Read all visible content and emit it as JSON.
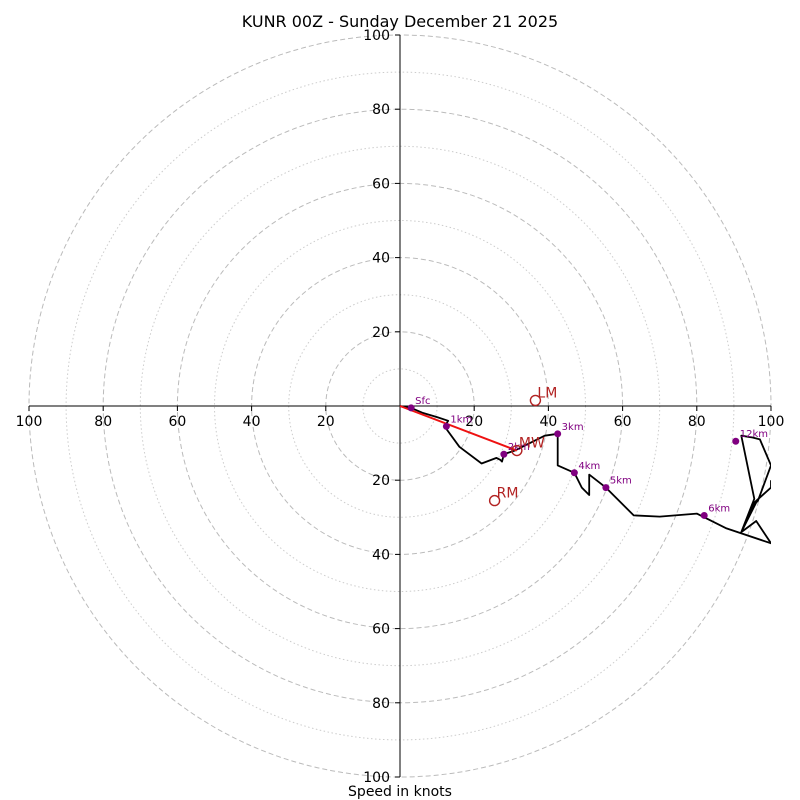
{
  "chart_data": {
    "type": "hodograph",
    "title": "KUNR 00Z - Sunday December 21 2025",
    "xlabel": "Speed in knots",
    "rings_major": [
      20,
      40,
      60,
      80,
      100
    ],
    "rings_minor": [
      10,
      30,
      50,
      70,
      90
    ],
    "axis_range": [
      -100,
      100
    ],
    "x_ticks": [
      {
        "value": -100,
        "label": "100"
      },
      {
        "value": -80,
        "label": "80"
      },
      {
        "value": -60,
        "label": "60"
      },
      {
        "value": -40,
        "label": "40"
      },
      {
        "value": -20,
        "label": "20"
      },
      {
        "value": 20,
        "label": "20"
      },
      {
        "value": 40,
        "label": "40"
      },
      {
        "value": 60,
        "label": "60"
      },
      {
        "value": 80,
        "label": "80"
      },
      {
        "value": 100,
        "label": "100"
      }
    ],
    "y_ticks": [
      {
        "value": 100,
        "label": "100"
      },
      {
        "value": 80,
        "label": "80"
      },
      {
        "value": 60,
        "label": "60"
      },
      {
        "value": 40,
        "label": "40"
      },
      {
        "value": 20,
        "label": "20"
      },
      {
        "value": -20,
        "label": "20"
      },
      {
        "value": -40,
        "label": "40"
      },
      {
        "value": -60,
        "label": "60"
      },
      {
        "value": -80,
        "label": "80"
      },
      {
        "value": -100,
        "label": "100"
      }
    ],
    "trace": [
      [
        0,
        0
      ],
      [
        3,
        -0.5
      ],
      [
        6,
        -1.8
      ],
      [
        10,
        -3
      ],
      [
        13,
        -4
      ],
      [
        12,
        -5.5
      ],
      [
        16,
        -11
      ],
      [
        22,
        -15.5
      ],
      [
        26,
        -14
      ],
      [
        27,
        -14.5
      ],
      [
        27.5,
        -15
      ],
      [
        28,
        -13
      ],
      [
        31,
        -12
      ],
      [
        35,
        -10
      ],
      [
        39,
        -8
      ],
      [
        42.5,
        -7.5
      ],
      [
        42.5,
        -16
      ],
      [
        47,
        -18
      ],
      [
        49,
        -22
      ],
      [
        51,
        -24
      ],
      [
        51,
        -18.5
      ],
      [
        55.5,
        -22
      ],
      [
        63,
        -29.5
      ],
      [
        70,
        -29.8
      ],
      [
        80,
        -29
      ],
      [
        88,
        -33
      ],
      [
        100,
        -37
      ],
      [
        96,
        -31
      ],
      [
        92,
        -34
      ],
      [
        96,
        -26
      ],
      [
        96.5,
        -25.5
      ],
      [
        100,
        -16
      ],
      [
        97,
        -9
      ],
      [
        95,
        -8.5
      ],
      [
        92,
        -8
      ],
      [
        95.5,
        -25
      ],
      [
        92,
        -34
      ],
      [
        95.5,
        -26
      ],
      [
        100,
        -22
      ],
      [
        100,
        -20
      ]
    ],
    "height_markers": [
      {
        "label": "Sfc",
        "u": 3,
        "v": -0.5
      },
      {
        "label": "1km",
        "u": 12.5,
        "v": -5.5
      },
      {
        "label": "2km",
        "u": 28,
        "v": -13
      },
      {
        "label": "3km",
        "u": 42.5,
        "v": -7.5
      },
      {
        "label": "4km",
        "u": 47,
        "v": -18
      },
      {
        "label": "5km",
        "u": 55.5,
        "v": -22
      },
      {
        "label": "6km",
        "u": 82,
        "v": -29.5
      },
      {
        "label": "12km",
        "u": 90.5,
        "v": -9.5
      }
    ],
    "storm_motion": [
      {
        "label": "LM",
        "u": 36.5,
        "v": 1.5
      },
      {
        "label": "MW",
        "u": 31.5,
        "v": -12
      },
      {
        "label": "RM",
        "u": 25.5,
        "v": -25.5
      }
    ],
    "shear_vector": {
      "from": [
        0,
        0
      ],
      "to": [
        31.5,
        -12
      ]
    },
    "colors": {
      "trace": "#000000",
      "heights": "#800080",
      "motion": "#b22222",
      "shear": "#ee1111"
    }
  }
}
